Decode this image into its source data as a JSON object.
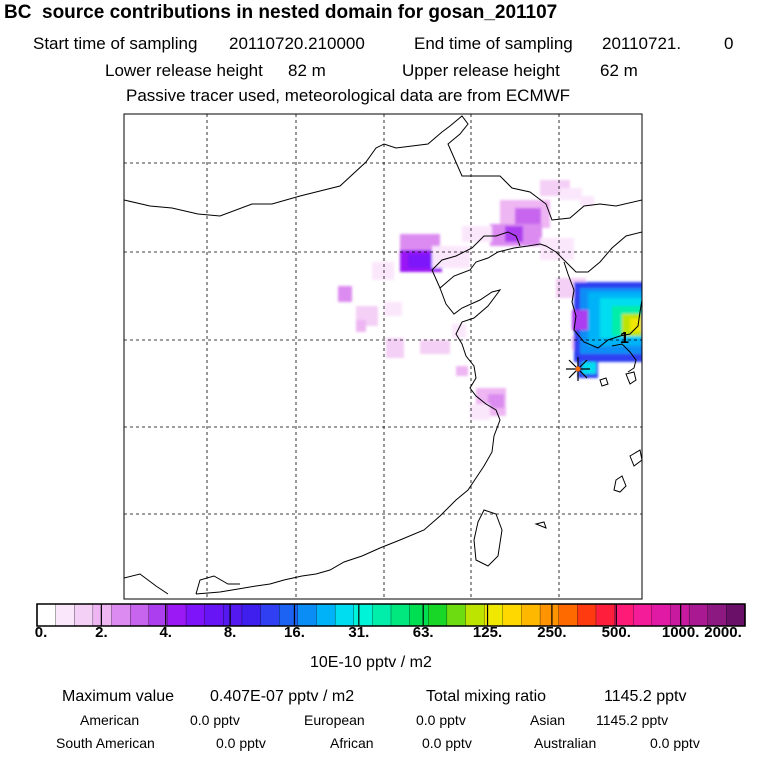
{
  "header": {
    "title": "BC  source contributions in nested domain for gosan_201107",
    "start_label": "Start time of sampling",
    "start_value": "20110720.210000",
    "end_label": "End time of sampling",
    "end_value": "20110721.",
    "end_suffix": "0",
    "lower_label": "Lower release height",
    "lower_value": "82 m",
    "upper_label": "Upper release height",
    "upper_value": "62 m",
    "note": "Passive tracer used, meteorological data are from ECMWF"
  },
  "map": {
    "receptor_marker": "asterisk-icon",
    "label_1": "1"
  },
  "colorbar": {
    "ticks": [
      "0.",
      "2.",
      "4.",
      "8.",
      "16.",
      "31.",
      "63.",
      "125.",
      "250.",
      "500.",
      "1000.",
      "2000."
    ],
    "colors": [
      "#ffffff",
      "#fbe7fc",
      "#f4cff6",
      "#eeb6f3",
      "#dc8cf0",
      "#c765ee",
      "#ad3ef0",
      "#9a19f5",
      "#7d14fa",
      "#6715f5",
      "#5418f0",
      "#3f1fee",
      "#2f3ff1",
      "#1c63f4",
      "#0b8df6",
      "#00b2f8",
      "#00ddf0",
      "#00f5d8",
      "#00eeaa",
      "#00e87e",
      "#00de52",
      "#18d726",
      "#6ddc10",
      "#bde300",
      "#f0e800",
      "#ffd800",
      "#ffb800",
      "#ff9400",
      "#ff6a00",
      "#ff3a10",
      "#ff1e3c",
      "#ff1a78",
      "#f51c9a",
      "#e01aa4",
      "#c81a9e",
      "#a91a92",
      "#8c1882",
      "#6a1068"
    ],
    "units": "10E-10 pptv / m2"
  },
  "summary": {
    "max_label": "Maximum value",
    "max_value": "0.407E-07 pptv / m2",
    "total_label": "Total mixing ratio",
    "total_value": "1145.2 pptv",
    "regions": [
      {
        "name": "American",
        "value": "0.0 pptv"
      },
      {
        "name": "European",
        "value": "0.0 pptv"
      },
      {
        "name": "Asian",
        "value": "1145.2 pptv"
      },
      {
        "name": "South American",
        "value": "0.0 pptv"
      },
      {
        "name": "African",
        "value": "0.0 pptv"
      },
      {
        "name": "Australian",
        "value": "0.0 pptv"
      }
    ]
  }
}
